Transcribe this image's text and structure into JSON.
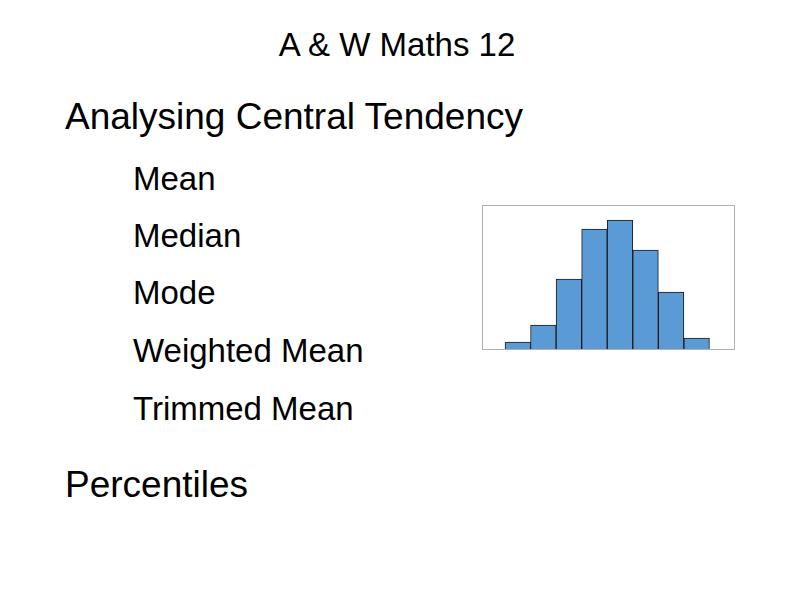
{
  "header": {
    "title": "A & W Maths 12"
  },
  "heading": "Analysing Central Tendency",
  "items": [
    "Mean",
    "Median",
    "Mode",
    "Weighted Mean",
    "Trimmed Mean"
  ],
  "footer_heading": "Percentiles",
  "chart_data": {
    "type": "histogram",
    "bins": [
      0,
      1,
      2,
      3,
      4,
      5,
      6,
      7,
      8
    ],
    "values": [
      8,
      25,
      71,
      121,
      130,
      100,
      58,
      12
    ],
    "color": "#5b9bd5",
    "xlim": [
      -0.9,
      9
    ],
    "ylim": [
      0,
      145
    ],
    "grid": false,
    "tick_labels": false
  }
}
